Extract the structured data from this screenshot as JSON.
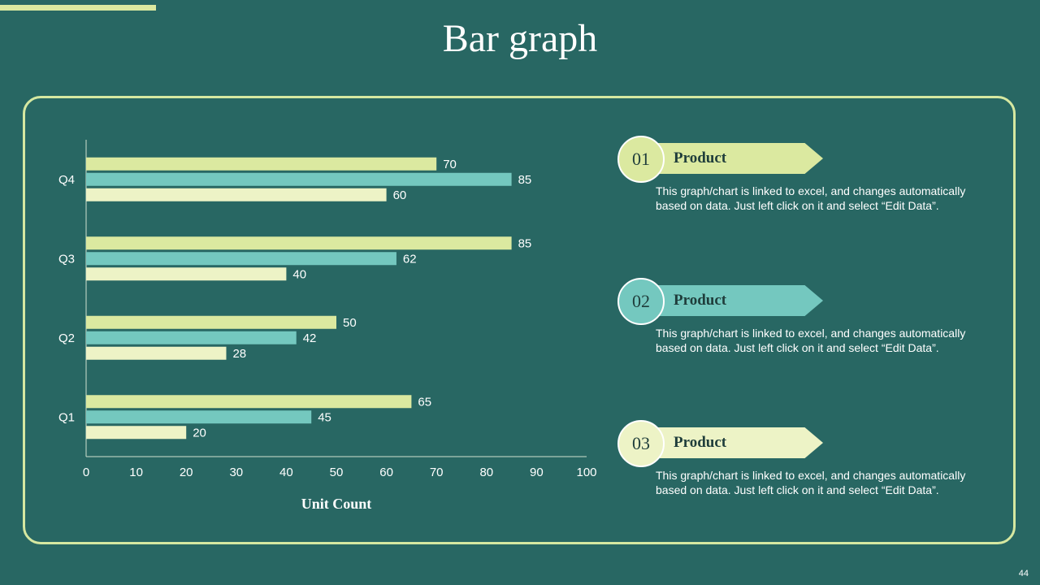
{
  "slide": {
    "title": "Bar graph",
    "page_number": "44"
  },
  "colors": {
    "background": "#286763",
    "accent_light": "#dbe9a0",
    "series": [
      "#dbe9a0",
      "#74c8bf",
      "#edf3c6"
    ]
  },
  "chart_data": {
    "type": "bar",
    "orientation": "horizontal",
    "categories": [
      "Q1",
      "Q2",
      "Q3",
      "Q4"
    ],
    "series": [
      {
        "name": "Product 01",
        "values": [
          65,
          50,
          85,
          70
        ]
      },
      {
        "name": "Product 02",
        "values": [
          45,
          42,
          62,
          85
        ]
      },
      {
        "name": "Product 03",
        "values": [
          20,
          28,
          40,
          60
        ]
      }
    ],
    "xlim": [
      0,
      100
    ],
    "xticks": [
      0,
      10,
      20,
      30,
      40,
      50,
      60,
      70,
      80,
      90,
      100
    ],
    "xlabel": "Unit Count",
    "ylabel": "",
    "data_labels": true,
    "grid": false
  },
  "legend": [
    {
      "number": "01",
      "label": "Product",
      "color": "#dbe9a0",
      "description": "This graph/chart is linked to excel, and changes automatically based on data. Just left click on it and select “Edit Data”."
    },
    {
      "number": "02",
      "label": "Product",
      "color": "#74c8bf",
      "description": "This graph/chart is linked to excel, and changes automatically based on data. Just left click on it and select “Edit Data”."
    },
    {
      "number": "03",
      "label": "Product",
      "color": "#edf3c6",
      "description": "This graph/chart is linked to excel, and changes automatically based on data. Just left click on it and select “Edit Data”."
    }
  ]
}
